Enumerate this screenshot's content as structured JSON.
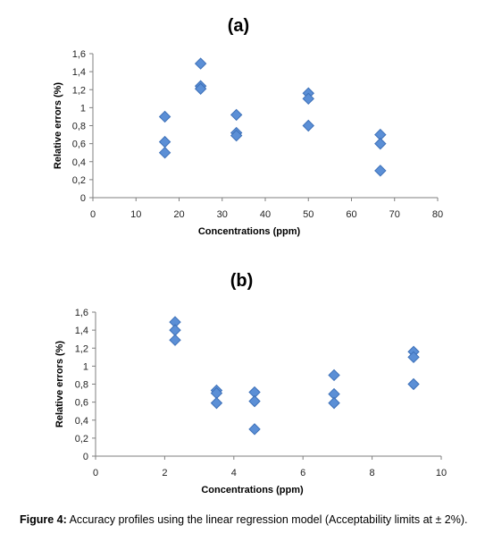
{
  "colors": {
    "marker_fill": "#5b8fd6",
    "marker_stroke": "#3d70b8",
    "axis": "#7f7f7f"
  },
  "chart_data": [
    {
      "type": "scatter",
      "title": "(a)",
      "xlabel": "Concentrations (ppm)",
      "ylabel": "Relative errors (%)",
      "xlim": [
        0,
        80
      ],
      "ylim": [
        0,
        1.6
      ],
      "xticks": [
        "0",
        "10",
        "20",
        "30",
        "40",
        "50",
        "60",
        "70",
        "80"
      ],
      "yticks": [
        "0",
        "0,2",
        "0,4",
        "0,6",
        "0,8",
        "1",
        "1,2",
        "1,4",
        "1,6"
      ],
      "grid": false,
      "legend": "none",
      "series": [
        {
          "x": [
            16.7,
            16.7,
            16.7,
            25,
            25,
            25,
            33.3,
            33.3,
            33.3,
            50,
            50,
            50,
            66.7,
            66.7,
            66.7
          ],
          "y": [
            0.9,
            0.62,
            0.5,
            1.49,
            1.24,
            1.21,
            0.92,
            0.72,
            0.69,
            1.16,
            1.1,
            0.8,
            0.7,
            0.6,
            0.3
          ]
        }
      ]
    },
    {
      "type": "scatter",
      "title": "(b)",
      "xlabel": "Concentrations (ppm)",
      "ylabel": "Relative errors (%)",
      "xlim": [
        0,
        10
      ],
      "ylim": [
        0,
        1.6
      ],
      "xticks": [
        "0",
        "2",
        "4",
        "6",
        "8",
        "10"
      ],
      "yticks": [
        "0",
        "0,2",
        "0,4",
        "0,6",
        "0,8",
        "1",
        "1,2",
        "1,4",
        "1,6"
      ],
      "grid": false,
      "legend": "none",
      "series": [
        {
          "x": [
            2.3,
            2.3,
            2.3,
            3.5,
            3.5,
            3.5,
            4.6,
            4.6,
            4.6,
            6.9,
            6.9,
            6.9,
            9.2,
            9.2,
            9.2
          ],
          "y": [
            1.49,
            1.4,
            1.29,
            0.73,
            0.7,
            0.59,
            0.71,
            0.61,
            0.3,
            0.9,
            0.69,
            0.59,
            1.16,
            1.1,
            0.8
          ]
        }
      ]
    }
  ],
  "caption": {
    "label": "Figure 4:",
    "text": " Accuracy profiles using the linear regression model (Acceptability limits at ± 2%)."
  }
}
